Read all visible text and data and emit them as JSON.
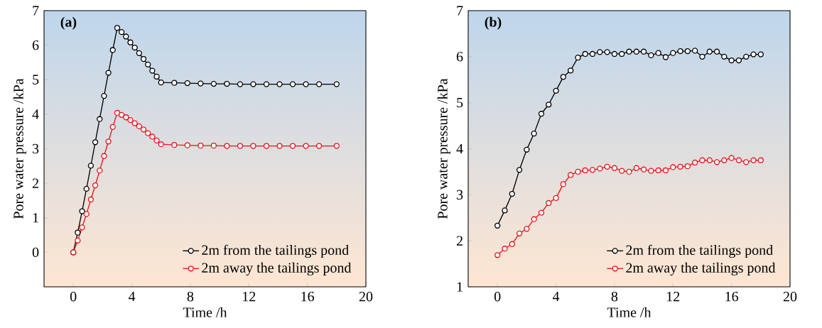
{
  "chart_data": [
    {
      "type": "line",
      "title": "(a)",
      "xlabel": "Time /h",
      "ylabel": "Pore water pressure /kPa",
      "xlim": [
        -2,
        20
      ],
      "ylim": [
        -1,
        7
      ],
      "xticks": [
        0,
        4,
        8,
        12,
        16,
        20
      ],
      "yticks": [
        0,
        1,
        2,
        3,
        4,
        5,
        6,
        7
      ],
      "legend": "bottom right",
      "marker": "circle",
      "x": [
        0,
        0.3,
        0.6,
        0.9,
        1.2,
        1.5,
        1.8,
        2.1,
        2.4,
        2.7,
        3.0,
        3.3,
        3.6,
        3.9,
        4.2,
        4.5,
        4.8,
        5.1,
        5.4,
        5.7,
        6.0,
        6.9,
        7.8,
        8.7,
        9.6,
        10.5,
        11.4,
        12.3,
        13.2,
        14.1,
        15.0,
        15.9,
        16.8,
        18
      ],
      "series": [
        {
          "name": "2m from the tailings pond",
          "color": "#000000",
          "values": [
            0,
            0.57,
            1.19,
            1.84,
            2.51,
            3.19,
            3.86,
            4.53,
            5.2,
            5.86,
            6.5,
            6.38,
            6.25,
            6.08,
            5.93,
            5.77,
            5.6,
            5.44,
            5.26,
            5.09,
            4.92,
            4.91,
            4.9,
            4.89,
            4.88,
            4.88,
            4.87,
            4.87,
            4.87,
            4.87,
            4.87,
            4.87,
            4.87,
            4.87
          ]
        },
        {
          "name": "2m away the tailings pond",
          "color": "#e8141c",
          "values": [
            0,
            0.34,
            0.72,
            1.11,
            1.53,
            1.94,
            2.37,
            2.79,
            3.21,
            3.63,
            4.04,
            3.98,
            3.91,
            3.83,
            3.74,
            3.65,
            3.56,
            3.45,
            3.35,
            3.24,
            3.13,
            3.11,
            3.1,
            3.09,
            3.09,
            3.08,
            3.08,
            3.08,
            3.08,
            3.08,
            3.08,
            3.08,
            3.08,
            3.08
          ]
        }
      ]
    },
    {
      "type": "line",
      "title": "(b)",
      "xlabel": "Time /h",
      "ylabel": "Pore water pressure /kPa",
      "xlim": [
        -2,
        20
      ],
      "ylim": [
        1,
        7
      ],
      "xticks": [
        0,
        4,
        8,
        12,
        16,
        20
      ],
      "yticks": [
        1,
        2,
        3,
        4,
        5,
        6,
        7
      ],
      "legend": "bottom right",
      "marker": "circle",
      "x": [
        0,
        0.5,
        1,
        1.5,
        2,
        2.5,
        3,
        3.5,
        4,
        4.5,
        5,
        5.5,
        6,
        6.5,
        7,
        7.5,
        8,
        8.5,
        9,
        9.5,
        10,
        10.5,
        11,
        11.5,
        12,
        12.5,
        13,
        13.5,
        14,
        14.5,
        15,
        15.5,
        16,
        16.5,
        17,
        17.5,
        18
      ],
      "series": [
        {
          "name": "2m from the tailings pond",
          "color": "#000000",
          "values": [
            2.33,
            2.66,
            3.02,
            3.54,
            3.98,
            4.33,
            4.76,
            4.96,
            5.26,
            5.56,
            5.7,
            5.98,
            6.06,
            6.06,
            6.1,
            6.1,
            6.06,
            6.06,
            6.11,
            6.11,
            6.11,
            6.03,
            6.08,
            5.99,
            6.08,
            6.12,
            6.12,
            6.13,
            6.0,
            6.11,
            6.11,
            6.0,
            5.92,
            5.92,
            6.0,
            6.05,
            6.05
          ]
        },
        {
          "name": "2m away the tailings pond",
          "color": "#e8141c",
          "values": [
            1.69,
            1.83,
            1.93,
            2.16,
            2.26,
            2.47,
            2.61,
            2.82,
            2.93,
            3.23,
            3.43,
            3.5,
            3.53,
            3.54,
            3.57,
            3.61,
            3.58,
            3.52,
            3.5,
            3.58,
            3.55,
            3.52,
            3.53,
            3.53,
            3.6,
            3.61,
            3.62,
            3.7,
            3.75,
            3.75,
            3.71,
            3.75,
            3.8,
            3.75,
            3.71,
            3.75,
            3.75
          ]
        }
      ]
    }
  ]
}
